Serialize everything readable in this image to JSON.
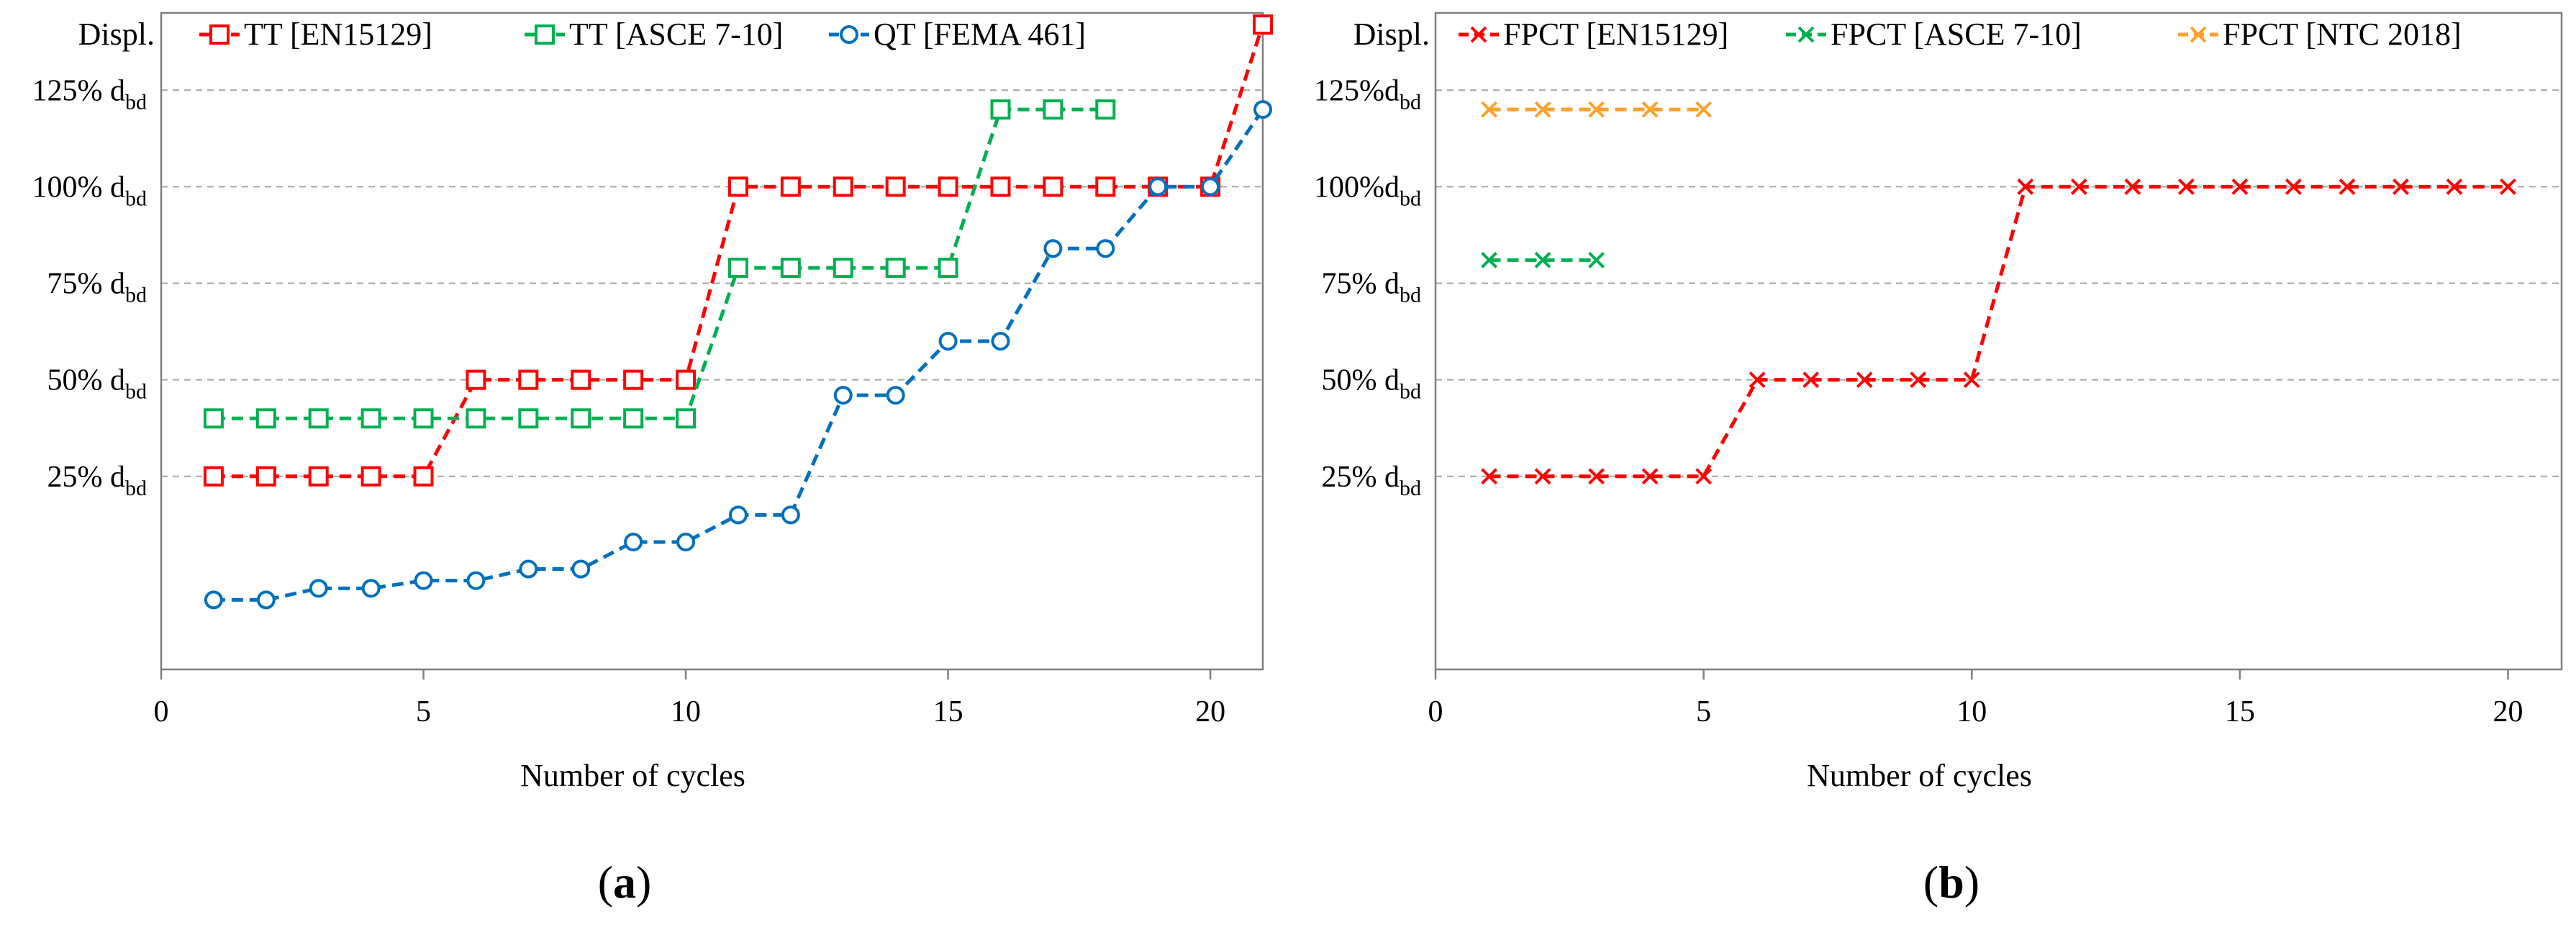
{
  "chart_data": [
    {
      "type": "line",
      "panel_label": "a",
      "xlabel": "Number of cycles",
      "ylabel": "Displ.",
      "x_ticks": [
        "0",
        "5",
        "10",
        "15",
        "20"
      ],
      "x_tick_values": [
        0,
        5,
        10,
        15,
        20
      ],
      "y_ticks": [
        {
          "value": 25,
          "main": "25% d",
          "sub": "bd"
        },
        {
          "value": 50,
          "main": "50% d",
          "sub": "bd"
        },
        {
          "value": 75,
          "main": "75% d",
          "sub": "bd"
        },
        {
          "value": 100,
          "main": "100% d",
          "sub": "bd"
        },
        {
          "value": 125,
          "main": "125% d",
          "sub": "bd"
        }
      ],
      "xlim": [
        0,
        21
      ],
      "ylim": [
        -25,
        145
      ],
      "grid": "horizontal dashed",
      "legend_position": "top",
      "series": [
        {
          "name": "TT [EN15129]",
          "color": "#ff0000",
          "marker": "square",
          "x": [
            1,
            2,
            3,
            4,
            5,
            6,
            7,
            8,
            9,
            10,
            11,
            12,
            13,
            14,
            15,
            16,
            17,
            18,
            19,
            20,
            21
          ],
          "y": [
            25,
            25,
            25,
            25,
            25,
            50,
            50,
            50,
            50,
            50,
            100,
            100,
            100,
            100,
            100,
            100,
            100,
            100,
            100,
            100,
            142
          ]
        },
        {
          "name": "TT [ASCE 7-10]",
          "color": "#00b050",
          "marker": "square",
          "x": [
            1,
            2,
            3,
            4,
            5,
            6,
            7,
            8,
            9,
            10,
            11,
            12,
            13,
            14,
            15,
            16,
            17,
            18
          ],
          "y": [
            40,
            40,
            40,
            40,
            40,
            40,
            40,
            40,
            40,
            40,
            79,
            79,
            79,
            79,
            79,
            120,
            120,
            120
          ]
        },
        {
          "name": "QT [FEMA 461]",
          "color": "#0070c0",
          "marker": "circle",
          "x": [
            1,
            2,
            3,
            4,
            5,
            6,
            7,
            8,
            9,
            10,
            11,
            12,
            13,
            14,
            15,
            16,
            17,
            18,
            19,
            20,
            21
          ],
          "y": [
            -7,
            -7,
            -4,
            -4,
            -2,
            -2,
            1,
            1,
            8,
            8,
            15,
            15,
            46,
            46,
            60,
            60,
            84,
            84,
            100,
            100,
            120
          ]
        }
      ]
    },
    {
      "type": "line",
      "panel_label": "b",
      "xlabel": "Number of cycles",
      "ylabel": "Displ.",
      "x_ticks": [
        "0",
        "5",
        "10",
        "15",
        "20"
      ],
      "x_tick_values": [
        0,
        5,
        10,
        15,
        20
      ],
      "y_ticks": [
        {
          "value": 25,
          "main": "25% d",
          "sub": "bd"
        },
        {
          "value": 50,
          "main": "50% d",
          "sub": "bd"
        },
        {
          "value": 75,
          "main": "75% d",
          "sub": "bd"
        },
        {
          "value": 100,
          "main": "100%d",
          "sub": "bd"
        },
        {
          "value": 125,
          "main": "125%d",
          "sub": "bd"
        }
      ],
      "xlim": [
        0,
        21
      ],
      "ylim": [
        -25,
        145
      ],
      "grid": "horizontal dashed",
      "legend_position": "top",
      "series": [
        {
          "name": "FPCT [EN15129]",
          "color": "#ff0000",
          "marker": "x",
          "x": [
            1,
            2,
            3,
            4,
            5,
            6,
            7,
            8,
            9,
            10,
            11,
            12,
            13,
            14,
            15,
            16,
            17,
            18,
            19,
            20
          ],
          "y": [
            25,
            25,
            25,
            25,
            25,
            50,
            50,
            50,
            50,
            50,
            100,
            100,
            100,
            100,
            100,
            100,
            100,
            100,
            100,
            100
          ]
        },
        {
          "name": "FPCT [ASCE 7-10]",
          "color": "#00b050",
          "marker": "x",
          "x": [
            1,
            2,
            3
          ],
          "y": [
            81,
            81,
            81
          ]
        },
        {
          "name": "FPCT [NTC 2018]",
          "color": "#ffa02a",
          "marker": "x",
          "x": [
            1,
            2,
            3,
            4,
            5
          ],
          "y": [
            120,
            120,
            120,
            120,
            120
          ]
        }
      ]
    }
  ]
}
